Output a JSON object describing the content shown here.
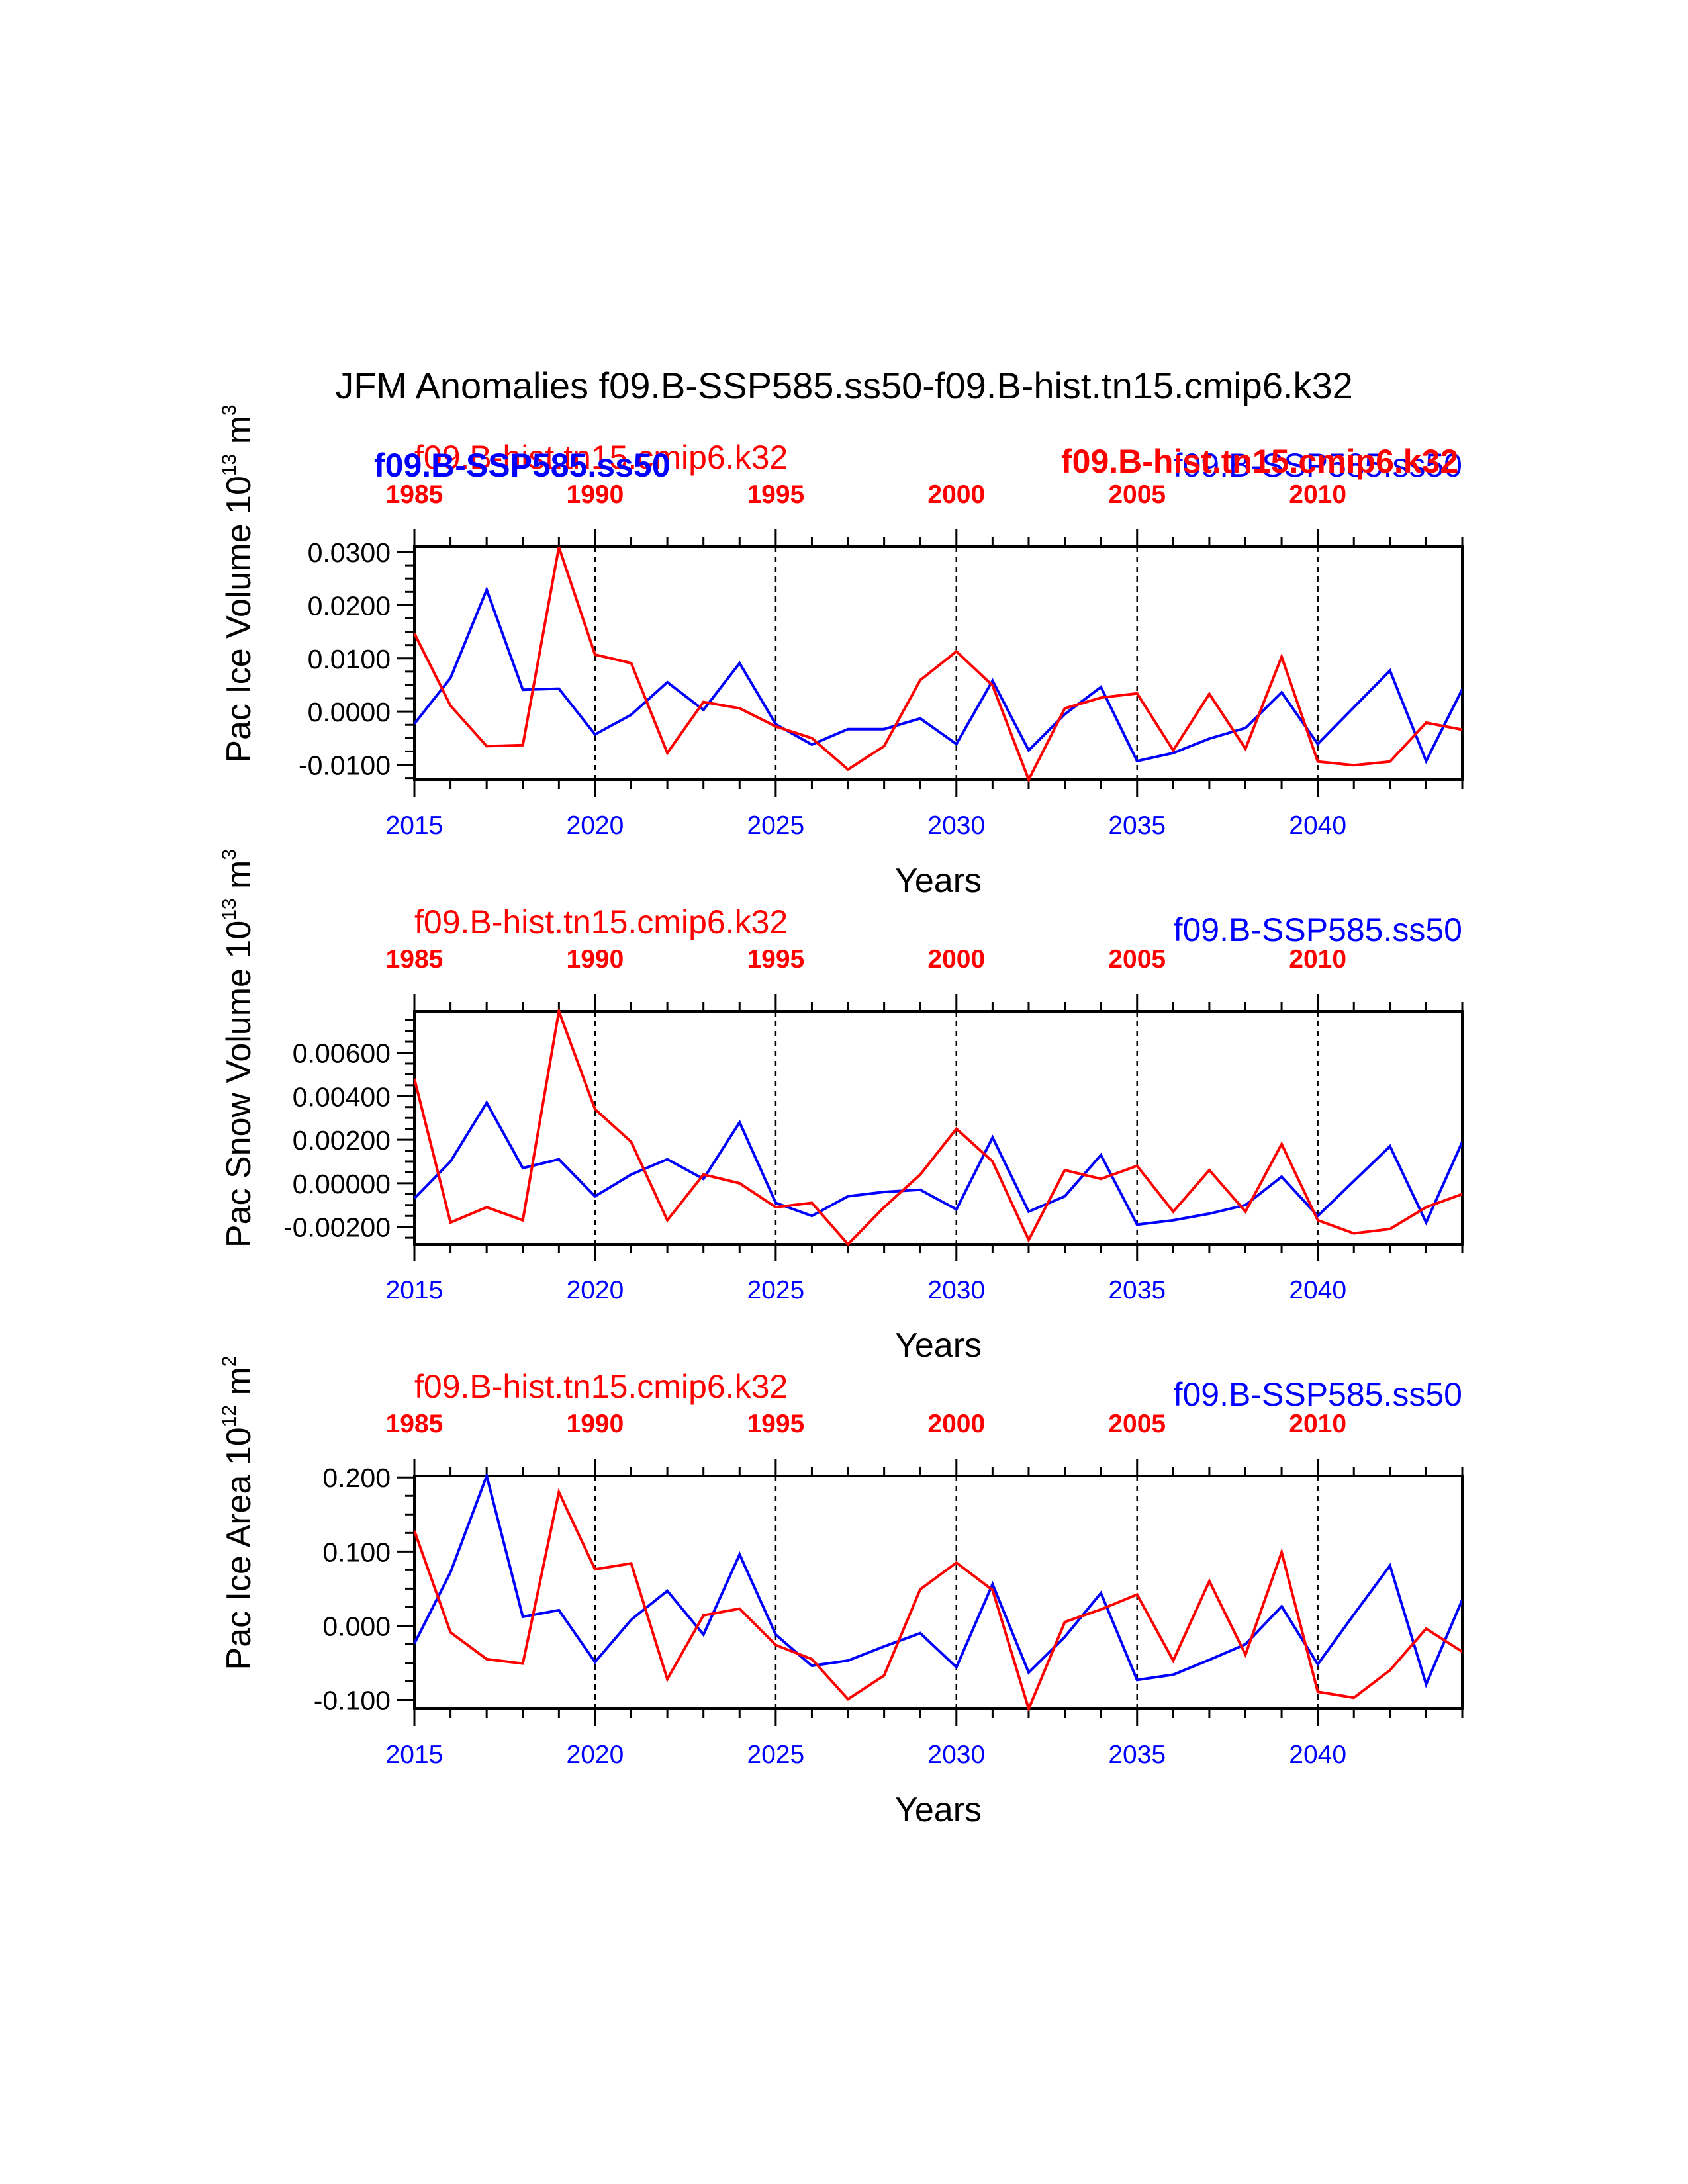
{
  "title": "JFM Anomalies f09.B-SSP585.ss50-f09.B-hist.tn15.cmip6.k32",
  "overlay": {
    "left_bold_label": "f09.B-SSP585.ss50",
    "right_bold_label": "f09.B-hist.tn15.cmip6.k32"
  },
  "colors": {
    "ssp": "#0000ff",
    "hist": "#ff0000",
    "axis": "#000000"
  },
  "chart_data": [
    {
      "type": "line",
      "ylabel": "Pac Ice Volume 10",
      "ylabel_sup": "13",
      "ylabel_unit": " m",
      "ylabel_unit_sup": "3",
      "xlabel": "Years",
      "hist_label": "f09.B-hist.tn15.cmip6.k32",
      "ssp_label": "f09.B-SSP585.ss50",
      "top_ticks": [
        "1985",
        "1990",
        "1995",
        "2000",
        "2005",
        "2010"
      ],
      "bottom_ticks": [
        "2015",
        "2020",
        "2025",
        "2030",
        "2035",
        "2040"
      ],
      "y_ticks": [
        "0.0300",
        "0.0200",
        "0.0100",
        "0.0000",
        "-0.0100"
      ],
      "y_tick_values": [
        0.03,
        0.02,
        0.01,
        0.0,
        -0.01
      ],
      "ylim": [
        -0.0128,
        0.031
      ],
      "xlim": [
        2015,
        2044
      ],
      "series": [
        {
          "name": "f09.B-SSP585.ss50",
          "x": [
            2015,
            2016,
            2017,
            2018,
            2019,
            2020,
            2021,
            2022,
            2023,
            2024,
            2025,
            2026,
            2027,
            2028,
            2029,
            2030,
            2031,
            2032,
            2033,
            2034,
            2035,
            2036,
            2037,
            2038,
            2039,
            2040,
            2041,
            2042,
            2043,
            2044
          ],
          "values": [
            -0.0023,
            0.0063,
            0.0229,
            0.0041,
            0.0043,
            -0.0043,
            -0.0006,
            0.0055,
            0.0003,
            0.0091,
            -0.0024,
            -0.0062,
            -0.0033,
            -0.0033,
            -0.0013,
            -0.0061,
            0.0058,
            -0.0073,
            -0.0005,
            0.0046,
            -0.0093,
            -0.0078,
            -0.0051,
            -0.0031,
            0.0036,
            -0.0061,
            0.0008,
            0.0077,
            -0.0093,
            0.0042
          ]
        },
        {
          "name": "f09.B-hist.tn15.cmip6.k32",
          "x": [
            2015,
            2016,
            2017,
            2018,
            2019,
            2020,
            2021,
            2022,
            2023,
            2024,
            2025,
            2026,
            2027,
            2028,
            2029,
            2030,
            2031,
            2032,
            2033,
            2034,
            2035,
            2036,
            2037,
            2038,
            2039,
            2040,
            2041,
            2042,
            2043,
            2044
          ],
          "values": [
            0.0147,
            0.0011,
            -0.0065,
            -0.0063,
            0.0309,
            0.0107,
            0.0091,
            -0.0078,
            0.0018,
            0.0006,
            -0.0028,
            -0.005,
            -0.0109,
            -0.0065,
            0.0059,
            0.0113,
            0.0049,
            -0.0128,
            0.0006,
            0.0026,
            0.0034,
            -0.0073,
            0.0033,
            -0.007,
            0.0103,
            -0.0094,
            -0.0101,
            -0.0094,
            -0.0021,
            -0.0034
          ]
        }
      ]
    },
    {
      "type": "line",
      "ylabel": "Pac Snow Volume 10",
      "ylabel_sup": "13",
      "ylabel_unit": " m",
      "ylabel_unit_sup": "3",
      "xlabel": "Years",
      "hist_label": "f09.B-hist.tn15.cmip6.k32",
      "ssp_label": "f09.B-SSP585.ss50",
      "top_ticks": [
        "1985",
        "1990",
        "1995",
        "2000",
        "2005",
        "2010"
      ],
      "bottom_ticks": [
        "2015",
        "2020",
        "2025",
        "2030",
        "2035",
        "2040"
      ],
      "y_ticks": [
        "0.00600",
        "0.00400",
        "0.00200",
        "0.00000",
        "-0.00200"
      ],
      "y_tick_values": [
        0.006,
        0.004,
        0.002,
        0.0,
        -0.002
      ],
      "ylim": [
        -0.0028,
        0.0079
      ],
      "xlim": [
        2015,
        2044
      ],
      "series": [
        {
          "name": "f09.B-SSP585.ss50",
          "x": [
            2015,
            2016,
            2017,
            2018,
            2019,
            2020,
            2021,
            2022,
            2023,
            2024,
            2025,
            2026,
            2027,
            2028,
            2029,
            2030,
            2031,
            2032,
            2033,
            2034,
            2035,
            2036,
            2037,
            2038,
            2039,
            2040,
            2041,
            2042,
            2043,
            2044
          ],
          "values": [
            -0.0007,
            0.001,
            0.0037,
            0.0007,
            0.0011,
            -0.0006,
            0.0004,
            0.0011,
            0.0002,
            0.0028,
            -0.0009,
            -0.0015,
            -0.0006,
            -0.0004,
            -0.0003,
            -0.0012,
            0.0021,
            -0.0013,
            -0.0006,
            0.0013,
            -0.0019,
            -0.0017,
            -0.0014,
            -0.001,
            0.0003,
            -0.0015,
            0.0001,
            0.0017,
            -0.0018,
            0.0019
          ]
        },
        {
          "name": "f09.B-hist.tn15.cmip6.k32",
          "x": [
            2015,
            2016,
            2017,
            2018,
            2019,
            2020,
            2021,
            2022,
            2023,
            2024,
            2025,
            2026,
            2027,
            2028,
            2029,
            2030,
            2031,
            2032,
            2033,
            2034,
            2035,
            2036,
            2037,
            2038,
            2039,
            2040,
            2041,
            2042,
            2043,
            2044
          ],
          "values": [
            0.0048,
            -0.0018,
            -0.0011,
            -0.0017,
            0.0079,
            0.0034,
            0.0019,
            -0.0017,
            0.0004,
            0.0,
            -0.0011,
            -0.0009,
            -0.0028,
            -0.0011,
            0.0004,
            0.0025,
            0.001,
            -0.0026,
            0.0006,
            0.0002,
            0.0008,
            -0.0013,
            0.0006,
            -0.0013,
            0.0018,
            -0.0017,
            -0.0023,
            -0.0021,
            -0.0011,
            -0.0005
          ]
        }
      ]
    },
    {
      "type": "line",
      "ylabel": "Pac Ice Area 10",
      "ylabel_sup": "12",
      "ylabel_unit": " m",
      "ylabel_unit_sup": "2",
      "xlabel": "Years",
      "hist_label": "f09.B-hist.tn15.cmip6.k32",
      "ssp_label": "f09.B-SSP585.ss50",
      "top_ticks": [
        "1985",
        "1990",
        "1995",
        "2000",
        "2005",
        "2010"
      ],
      "bottom_ticks": [
        "2015",
        "2020",
        "2025",
        "2030",
        "2035",
        "2040"
      ],
      "y_ticks": [
        "0.200",
        "0.100",
        "0.000",
        "-0.100"
      ],
      "y_tick_values": [
        0.2,
        0.1,
        0.0,
        -0.1
      ],
      "ylim": [
        -0.112,
        0.202
      ],
      "xlim": [
        2015,
        2044
      ],
      "series": [
        {
          "name": "f09.B-SSP585.ss50",
          "x": [
            2015,
            2016,
            2017,
            2018,
            2019,
            2020,
            2021,
            2022,
            2023,
            2024,
            2025,
            2026,
            2027,
            2028,
            2029,
            2030,
            2031,
            2032,
            2033,
            2034,
            2035,
            2036,
            2037,
            2038,
            2039,
            2040,
            2041,
            2042,
            2043,
            2044
          ],
          "values": [
            -0.024,
            0.072,
            0.202,
            0.012,
            0.021,
            -0.049,
            0.008,
            0.047,
            -0.012,
            0.096,
            -0.012,
            -0.054,
            -0.047,
            -0.028,
            -0.01,
            -0.056,
            0.056,
            -0.063,
            -0.015,
            0.044,
            -0.073,
            -0.066,
            -0.046,
            -0.025,
            0.026,
            -0.052,
            0.015,
            0.081,
            -0.079,
            0.035
          ]
        },
        {
          "name": "f09.B-hist.tn15.cmip6.k32",
          "x": [
            2015,
            2016,
            2017,
            2018,
            2019,
            2020,
            2021,
            2022,
            2023,
            2024,
            2025,
            2026,
            2027,
            2028,
            2029,
            2030,
            2031,
            2032,
            2033,
            2034,
            2035,
            2036,
            2037,
            2038,
            2039,
            2040,
            2041,
            2042,
            2043,
            2044
          ],
          "values": [
            0.128,
            -0.009,
            -0.045,
            -0.051,
            0.18,
            0.076,
            0.084,
            -0.072,
            0.014,
            0.023,
            -0.026,
            -0.045,
            -0.099,
            -0.067,
            0.049,
            0.085,
            0.048,
            -0.112,
            0.005,
            0.022,
            0.042,
            -0.047,
            0.06,
            -0.039,
            0.099,
            -0.089,
            -0.097,
            -0.06,
            -0.004,
            -0.035
          ]
        }
      ]
    }
  ]
}
